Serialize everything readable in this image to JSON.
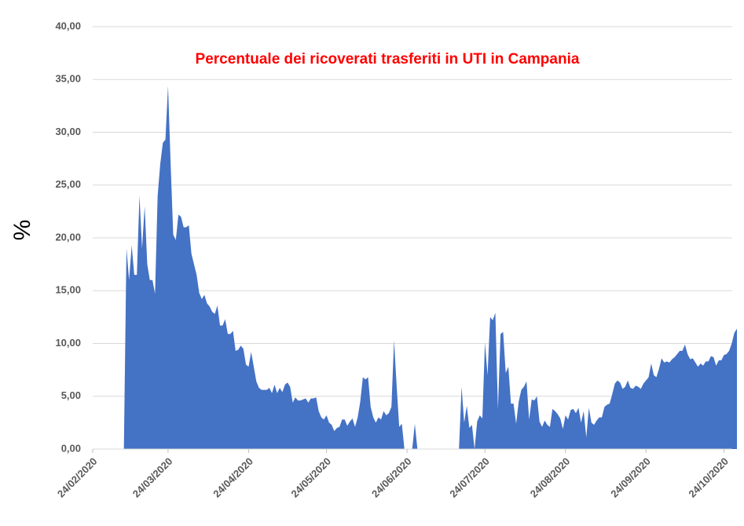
{
  "chart_data": {
    "type": "area",
    "title": "Percentuale dei ricoverati trasferiti in UTI in Campania",
    "y_label": "%",
    "color": "#4472c4",
    "grid": true,
    "x": [
      "07/03/2020",
      "08/03/2020",
      "09/03/2020",
      "10/03/2020",
      "11/03/2020",
      "12/03/2020",
      "13/03/2020",
      "14/03/2020",
      "15/03/2020",
      "16/03/2020",
      "17/03/2020",
      "18/03/2020",
      "19/03/2020",
      "20/03/2020",
      "21/03/2020",
      "22/03/2020",
      "23/03/2020",
      "24/03/2020",
      "25/03/2020",
      "26/03/2020",
      "27/03/2020",
      "28/03/2020",
      "29/03/2020",
      "30/03/2020",
      "31/03/2020",
      "01/04/2020",
      "02/04/2020",
      "03/04/2020",
      "04/04/2020",
      "05/04/2020",
      "06/04/2020",
      "07/04/2020",
      "08/04/2020",
      "09/04/2020",
      "10/04/2020",
      "11/04/2020",
      "12/04/2020",
      "13/04/2020",
      "14/04/2020",
      "15/04/2020",
      "16/04/2020",
      "17/04/2020",
      "18/04/2020",
      "19/04/2020",
      "20/04/2020",
      "21/04/2020",
      "22/04/2020",
      "23/04/2020",
      "24/04/2020",
      "25/04/2020",
      "26/04/2020",
      "27/04/2020",
      "28/04/2020",
      "29/04/2020",
      "30/04/2020",
      "01/05/2020",
      "02/05/2020",
      "03/05/2020",
      "04/05/2020",
      "05/05/2020",
      "06/05/2020",
      "07/05/2020",
      "08/05/2020",
      "09/05/2020",
      "10/05/2020",
      "11/05/2020",
      "12/05/2020",
      "13/05/2020",
      "14/05/2020",
      "15/05/2020",
      "16/05/2020",
      "17/05/2020",
      "18/05/2020",
      "19/05/2020",
      "20/05/2020",
      "21/05/2020",
      "22/05/2020",
      "23/05/2020",
      "24/05/2020",
      "25/05/2020",
      "26/05/2020",
      "27/05/2020",
      "28/05/2020",
      "29/05/2020",
      "30/05/2020",
      "31/05/2020",
      "01/06/2020",
      "02/06/2020",
      "03/06/2020",
      "04/06/2020",
      "05/06/2020",
      "06/06/2020",
      "07/06/2020",
      "08/06/2020",
      "09/06/2020",
      "10/06/2020",
      "11/06/2020",
      "12/06/2020",
      "13/06/2020",
      "14/06/2020",
      "15/06/2020",
      "16/06/2020",
      "17/06/2020",
      "18/06/2020",
      "19/06/2020",
      "20/06/2020",
      "21/06/2020",
      "22/06/2020",
      "23/06/2020",
      "24/06/2020",
      "25/06/2020",
      "26/06/2020",
      "27/06/2020",
      "28/06/2020",
      "29/06/2020",
      "30/06/2020",
      "01/07/2020",
      "02/07/2020",
      "03/07/2020",
      "04/07/2020",
      "05/07/2020",
      "06/07/2020",
      "07/07/2020",
      "08/07/2020",
      "09/07/2020",
      "10/07/2020",
      "11/07/2020",
      "12/07/2020",
      "13/07/2020",
      "14/07/2020",
      "15/07/2020",
      "16/07/2020",
      "17/07/2020",
      "18/07/2020",
      "19/07/2020",
      "20/07/2020",
      "21/07/2020",
      "22/07/2020",
      "23/07/2020",
      "24/07/2020",
      "25/07/2020",
      "26/07/2020",
      "27/07/2020",
      "28/07/2020",
      "29/07/2020",
      "30/07/2020",
      "31/07/2020",
      "01/08/2020",
      "02/08/2020",
      "03/08/2020",
      "04/08/2020",
      "05/08/2020",
      "06/08/2020",
      "07/08/2020",
      "08/08/2020",
      "09/08/2020",
      "10/08/2020",
      "11/08/2020",
      "12/08/2020",
      "13/08/2020",
      "14/08/2020",
      "15/08/2020",
      "16/08/2020",
      "17/08/2020",
      "18/08/2020",
      "19/08/2020",
      "20/08/2020",
      "21/08/2020",
      "22/08/2020",
      "23/08/2020",
      "24/08/2020",
      "25/08/2020",
      "26/08/2020",
      "27/08/2020",
      "28/08/2020",
      "29/08/2020",
      "30/08/2020",
      "31/08/2020",
      "01/09/2020",
      "02/09/2020",
      "03/09/2020",
      "04/09/2020",
      "05/09/2020",
      "06/09/2020",
      "07/09/2020",
      "08/09/2020",
      "09/09/2020",
      "10/09/2020",
      "11/09/2020",
      "12/09/2020",
      "13/09/2020",
      "14/09/2020",
      "15/09/2020",
      "16/09/2020",
      "17/09/2020",
      "18/09/2020",
      "19/09/2020",
      "20/09/2020",
      "21/09/2020",
      "22/09/2020",
      "23/09/2020",
      "24/09/2020",
      "25/09/2020",
      "26/09/2020",
      "27/09/2020",
      "28/09/2020",
      "29/09/2020",
      "30/09/2020",
      "01/10/2020",
      "02/10/2020",
      "03/10/2020",
      "04/10/2020",
      "05/10/2020",
      "06/10/2020",
      "07/10/2020",
      "08/10/2020",
      "09/10/2020",
      "10/10/2020",
      "11/10/2020",
      "12/10/2020",
      "13/10/2020",
      "14/10/2020",
      "15/10/2020",
      "16/10/2020",
      "17/10/2020",
      "18/10/2020",
      "19/10/2020",
      "20/10/2020",
      "21/10/2020",
      "22/10/2020",
      "23/10/2020",
      "24/10/2020",
      "25/10/2020",
      "26/10/2020",
      "27/10/2020",
      "28/10/2020",
      "29/10/2020"
    ],
    "values": [
      0,
      19,
      16,
      19.3,
      16.5,
      16.5,
      24,
      19,
      23,
      17.5,
      16,
      16,
      14.7,
      24,
      27,
      29,
      29.3,
      34.4,
      27,
      20.3,
      19.8,
      22.2,
      22,
      21,
      21,
      21.2,
      18.5,
      17.5,
      16.5,
      14.8,
      14.2,
      14.6,
      13.8,
      13.5,
      13,
      12.8,
      13.6,
      11.7,
      11.7,
      12.3,
      10.9,
      10.9,
      11.2,
      9.3,
      9.4,
      9.8,
      9.5,
      8,
      7.8,
      9.2,
      7.8,
      6.4,
      5.8,
      5.6,
      5.6,
      5.6,
      5.8,
      5.3,
      6.1,
      5.3,
      5.8,
      5.4,
      6.1,
      6.3,
      5.9,
      4.4,
      4.9,
      4.6,
      4.6,
      4.7,
      4.8,
      4.4,
      4.8,
      4.8,
      4.9,
      3.6,
      3,
      2.8,
      3.2,
      2.5,
      2.3,
      1.7,
      2,
      2.1,
      2.8,
      2.8,
      2.2,
      2.6,
      2.9,
      2.1,
      3,
      4.5,
      6.8,
      6.6,
      6.8,
      4,
      3,
      2.5,
      3,
      2.8,
      3.6,
      3.2,
      3.4,
      4,
      10.3,
      6,
      2.1,
      2.4,
      0,
      0,
      0,
      0,
      2.4,
      0,
      0,
      0,
      0,
      0,
      0,
      0,
      0,
      0,
      0,
      0,
      0,
      0,
      0,
      0,
      0,
      0,
      5.9,
      2.5,
      4.1,
      2,
      2.3,
      0,
      2.6,
      3.2,
      2.9,
      10.1,
      7,
      12.5,
      12.2,
      12.9,
      3.8,
      10.9,
      11.1,
      7.2,
      7.8,
      4.3,
      4.3,
      2.4,
      4.5,
      5.6,
      5.9,
      6.4,
      2.8,
      4.7,
      4.6,
      5,
      2.6,
      2.1,
      2.7,
      2.3,
      2.1,
      3.8,
      3.6,
      3.3,
      2.9,
      1.9,
      3.2,
      2.8,
      3.7,
      3.8,
      3.4,
      3.9,
      2.5,
      3.6,
      1.1,
      3.9,
      2.5,
      2.3,
      2.7,
      3,
      3,
      4,
      4.2,
      4.3,
      5.2,
      6.2,
      6.5,
      6.3,
      5.7,
      5.9,
      6.5,
      5.8,
      5.7,
      6,
      5.9,
      5.7,
      6.2,
      6.5,
      6.8,
      8.1,
      7,
      6.8,
      7.6,
      8.6,
      8.2,
      8.3,
      8.2,
      8.5,
      8.7,
      9,
      9.3,
      9.3,
      9.9,
      9,
      8.5,
      8.6,
      8.2,
      7.8,
      8.1,
      7.9,
      8.3,
      8.3,
      8.8,
      8.7,
      7.9,
      8.4,
      8.4,
      8.9,
      9,
      9.3,
      10,
      11,
      11.4
    ],
    "xlim": [
      "24/02/2020",
      "29/10/2020"
    ],
    "xticks": [
      "24/02/2020",
      "24/03/2020",
      "24/04/2020",
      "24/05/2020",
      "24/06/2020",
      "24/07/2020",
      "24/08/2020",
      "24/09/2020",
      "24/10/2020"
    ],
    "ylim": [
      0,
      40
    ],
    "yticks": [
      {
        "value": 0,
        "label": "0,00"
      },
      {
        "value": 5,
        "label": "5,00"
      },
      {
        "value": 10,
        "label": "10,00"
      },
      {
        "value": 15,
        "label": "15,00"
      },
      {
        "value": 20,
        "label": "20,00"
      },
      {
        "value": 25,
        "label": "25,00"
      },
      {
        "value": 30,
        "label": "30,00"
      },
      {
        "value": 35,
        "label": "35,00"
      },
      {
        "value": 40,
        "label": "40,00"
      }
    ]
  }
}
